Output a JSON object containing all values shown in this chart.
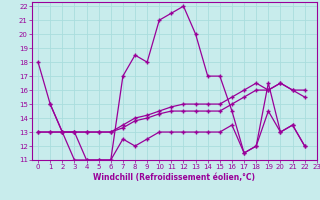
{
  "xlabel": "Windchill (Refroidissement éolien,°C)",
  "background_color": "#c8ecec",
  "line_color": "#990099",
  "xlim": [
    -0.5,
    23
  ],
  "ylim": [
    11,
    22.3
  ],
  "xticks": [
    0,
    1,
    2,
    3,
    4,
    5,
    6,
    7,
    8,
    9,
    10,
    11,
    12,
    13,
    14,
    15,
    16,
    17,
    18,
    19,
    20,
    21,
    22,
    23
  ],
  "yticks": [
    11,
    12,
    13,
    14,
    15,
    16,
    17,
    18,
    19,
    20,
    21,
    22
  ],
  "grid_color": "#aadddd",
  "line1_x": [
    0,
    1,
    2,
    3,
    4,
    5,
    6,
    7,
    8,
    9,
    10,
    11,
    12,
    13,
    14,
    15,
    16,
    17,
    18,
    19,
    20,
    21,
    22
  ],
  "line1_y": [
    18,
    15,
    13,
    11,
    11,
    11,
    11,
    12.5,
    12,
    12.5,
    13,
    13,
    13,
    13,
    13,
    13,
    13.5,
    11.5,
    12,
    14.5,
    13,
    13.5,
    12
  ],
  "line2_x": [
    1,
    2,
    3,
    4,
    5,
    6,
    7,
    8,
    9,
    10,
    11,
    12,
    13,
    14,
    15,
    16,
    17,
    18,
    19,
    20,
    21,
    22
  ],
  "line2_y": [
    15,
    13,
    13,
    11,
    11,
    11,
    17,
    18.5,
    18,
    21,
    21.5,
    22,
    20,
    17,
    17,
    14.5,
    11.5,
    12,
    16.5,
    13,
    13.5,
    12
  ],
  "line3_x": [
    0,
    1,
    2,
    3,
    4,
    5,
    6,
    7,
    8,
    9,
    10,
    11,
    12,
    13,
    14,
    15,
    16,
    17,
    18,
    19,
    20,
    21,
    22
  ],
  "line3_y": [
    13,
    13,
    13,
    13,
    13,
    13,
    13,
    13.5,
    14,
    14.2,
    14.5,
    14.8,
    15,
    15,
    15,
    15,
    15.5,
    16,
    16.5,
    16,
    16.5,
    16,
    15.5
  ],
  "line4_x": [
    0,
    1,
    2,
    3,
    4,
    5,
    6,
    7,
    8,
    9,
    10,
    11,
    12,
    13,
    14,
    15,
    16,
    17,
    18,
    19,
    20,
    21,
    22
  ],
  "line4_y": [
    13,
    13,
    13,
    13,
    13,
    13,
    13,
    13.3,
    13.8,
    14.0,
    14.3,
    14.5,
    14.5,
    14.5,
    14.5,
    14.5,
    15,
    15.5,
    16,
    16,
    16.5,
    16,
    16
  ]
}
